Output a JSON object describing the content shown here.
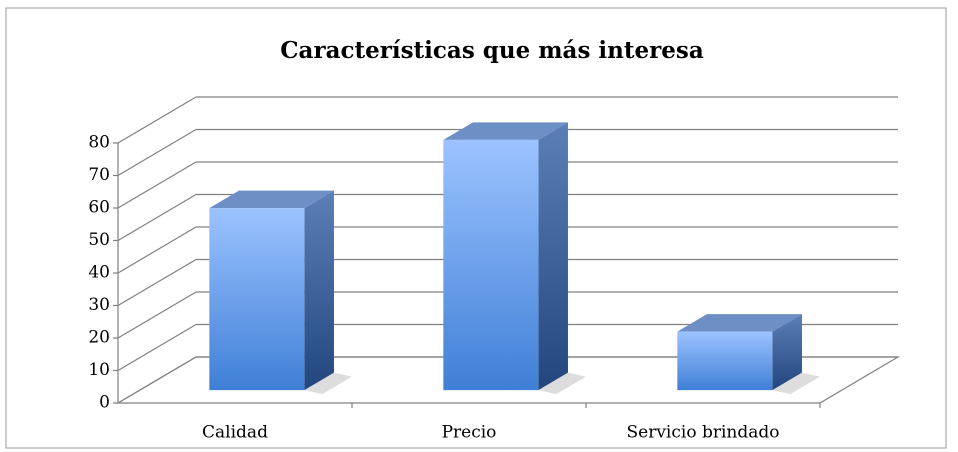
{
  "chart_data": {
    "type": "bar3d",
    "title": "Características que más interesa",
    "categories": [
      "Calidad",
      "Precio",
      "Servicio brindado"
    ],
    "values": [
      56,
      77,
      18
    ],
    "color": "#5b8fe0",
    "ylim": [
      0,
      80
    ],
    "yticks": [
      0,
      10,
      20,
      30,
      40,
      50,
      60,
      70,
      80
    ],
    "grid": true
  }
}
